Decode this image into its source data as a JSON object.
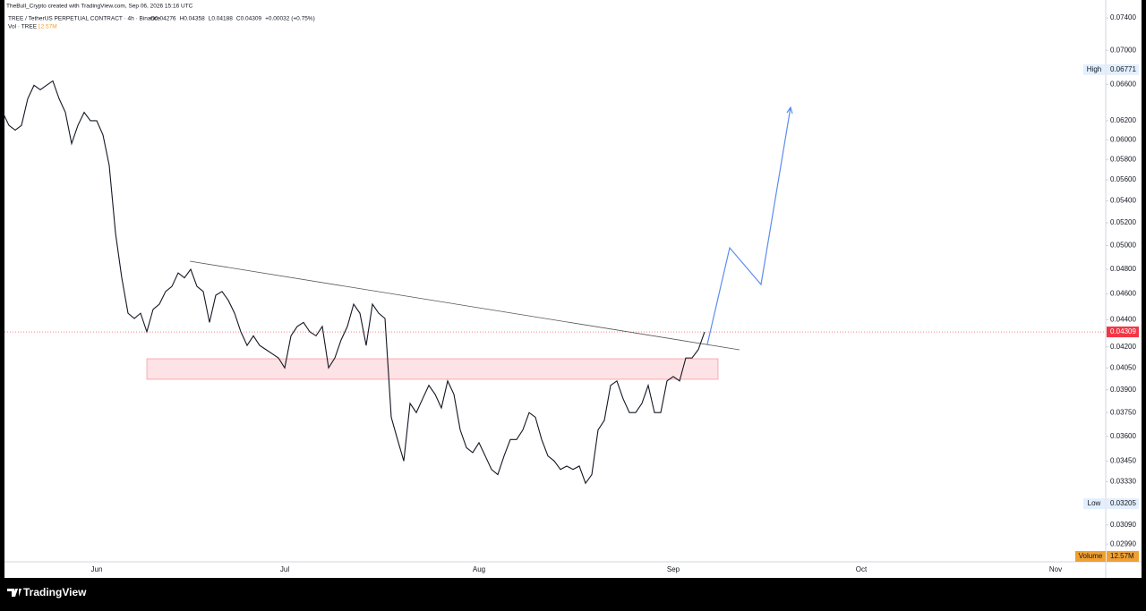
{
  "header": {
    "credit": "TheBull_Crypto created with TradingView.com, Sep 06, 2026 15:16 UTC",
    "symbol": "TREE / TetherUS PERPETUAL CONTRACT · 4h · Binance",
    "ohlc": [
      "O0.04276",
      "H0.04358",
      "L0.04188",
      "C0.04309",
      "+0.00032 (+0.75%)"
    ],
    "volume_label": "Vol · TREE",
    "volume_value": "12.57M"
  },
  "chart_data": {
    "type": "line",
    "color": "#131722",
    "log": true,
    "grid": false,
    "categories": [
      null,
      null,
      null,
      null,
      null,
      null,
      null,
      null,
      null,
      null,
      null,
      null,
      null,
      null,
      null,
      "Jun",
      null,
      null,
      null,
      null,
      null,
      null,
      null,
      null,
      null,
      null,
      null,
      null,
      null,
      null,
      null,
      null,
      null,
      null,
      null,
      null,
      null,
      null,
      null,
      null,
      null,
      null,
      null,
      null,
      null,
      "Jul",
      null,
      null,
      null,
      null,
      null,
      null,
      null,
      null,
      null,
      null,
      null,
      null,
      null,
      null,
      null,
      null,
      null,
      null,
      null,
      null,
      null,
      null,
      null,
      null,
      null,
      null,
      null,
      null,
      null,
      null,
      "Aug",
      null,
      null,
      null,
      null,
      null,
      null,
      null,
      null,
      null,
      null,
      null,
      null,
      null,
      null,
      null,
      null,
      null,
      null,
      null,
      null,
      null,
      null,
      null,
      null,
      null,
      null,
      null,
      null,
      null,
      null,
      "Sep",
      null,
      null,
      null,
      null,
      null,
      null,
      null,
      null,
      null,
      null,
      null,
      null,
      null,
      null,
      null,
      null,
      null,
      null,
      null,
      null,
      null,
      null,
      null,
      null,
      null,
      null,
      null,
      null,
      null,
      "Oct",
      null,
      null,
      null,
      null,
      null,
      null,
      null,
      null,
      null,
      null,
      null,
      null,
      null,
      null,
      null,
      null,
      null,
      null,
      null,
      null,
      null,
      null,
      null,
      null,
      null,
      null,
      null,
      null,
      null,
      null,
      "Nov",
      null,
      null,
      null,
      null,
      null,
      null,
      null
    ],
    "values": [
      0.0629,
      0.0615,
      0.061,
      0.0615,
      0.0644,
      0.0659,
      0.0654,
      0.0659,
      0.0664,
      0.0644,
      0.0629,
      0.0596,
      0.0615,
      0.0629,
      0.062,
      0.062,
      0.0605,
      0.0574,
      0.0511,
      0.0473,
      0.0445,
      0.0441,
      0.0445,
      0.0431,
      0.0448,
      0.0452,
      0.0462,
      0.0466,
      0.0477,
      0.0473,
      0.048,
      0.0466,
      0.0462,
      0.0438,
      0.0459,
      0.0462,
      0.0455,
      0.0445,
      0.0431,
      0.0421,
      0.0428,
      0.0421,
      0.0418,
      0.0415,
      0.0412,
      0.0405,
      0.0428,
      0.0435,
      0.0438,
      0.0431,
      0.0428,
      0.0435,
      0.0405,
      0.0412,
      0.0425,
      0.0435,
      0.0452,
      0.0445,
      0.0421,
      0.0452,
      0.0445,
      0.0441,
      0.0372,
      0.0358,
      0.0345,
      0.0381,
      0.0375,
      0.0384,
      0.0393,
      0.0387,
      0.0378,
      0.0396,
      0.0387,
      0.0364,
      0.0353,
      0.035,
      0.0356,
      0.0348,
      0.034,
      0.0337,
      0.0348,
      0.0358,
      0.0358,
      0.0364,
      0.0375,
      0.0372,
      0.0358,
      0.0348,
      0.0345,
      0.034,
      0.0342,
      0.034,
      0.0342,
      0.0332,
      0.0337,
      0.0364,
      0.037,
      0.0393,
      0.0396,
      0.0384,
      0.0375,
      0.0375,
      0.0381,
      0.0393,
      0.0375,
      0.0375,
      0.0396,
      0.0399,
      0.0396,
      0.0412,
      0.0412,
      0.0418,
      0.04309,
      null,
      null,
      null,
      null,
      null,
      null,
      null,
      null,
      null,
      null,
      null,
      null,
      null,
      null,
      null,
      null,
      null,
      null,
      null,
      null,
      null,
      null,
      null,
      null,
      null,
      null,
      null,
      null,
      null,
      null,
      null,
      null,
      null,
      null,
      null,
      null,
      null,
      null,
      null,
      null,
      null,
      null,
      null,
      null,
      null,
      null,
      null,
      null,
      null,
      null,
      null,
      null,
      null,
      null,
      null,
      null,
      null,
      null,
      null,
      null,
      null,
      null,
      null
    ],
    "ylim": [
      0.029,
      0.0747
    ],
    "yticks": [
      {
        "value": 0.074,
        "label": "0.07400"
      },
      {
        "value": 0.07,
        "label": "0.07000"
      },
      {
        "value": 0.066,
        "label": "0.06600"
      },
      {
        "value": 0.062,
        "label": "0.06200"
      },
      {
        "value": 0.06,
        "label": "0.06000"
      },
      {
        "value": 0.058,
        "label": "0.05800"
      },
      {
        "value": 0.056,
        "label": "0.05600"
      },
      {
        "value": 0.054,
        "label": "0.05400"
      },
      {
        "value": 0.052,
        "label": "0.05200"
      },
      {
        "value": 0.05,
        "label": "0.05000"
      },
      {
        "value": 0.048,
        "label": "0.04800"
      },
      {
        "value": 0.046,
        "label": "0.04600"
      },
      {
        "value": 0.044,
        "label": "0.04400"
      },
      {
        "value": 0.042,
        "label": "0.04200"
      },
      {
        "value": 0.0405,
        "label": "0.04050"
      },
      {
        "value": 0.039,
        "label": "0.03900"
      },
      {
        "value": 0.0375,
        "label": "0.03750"
      },
      {
        "value": 0.036,
        "label": "0.03600"
      },
      {
        "value": 0.0345,
        "label": "0.03450"
      },
      {
        "value": 0.0333,
        "label": "0.03330"
      },
      {
        "value": 0.0309,
        "label": "0.03090"
      },
      {
        "value": 0.0299,
        "label": "0.02990"
      }
    ],
    "markers": {
      "high": {
        "label": "High",
        "value": 0.06771
      },
      "low": {
        "label": "Low",
        "value": 0.03205
      },
      "last": 0.04309,
      "volume": {
        "label": "Volume",
        "value": "12.57M"
      }
    }
  },
  "footer": {
    "brand": "TradingView"
  }
}
